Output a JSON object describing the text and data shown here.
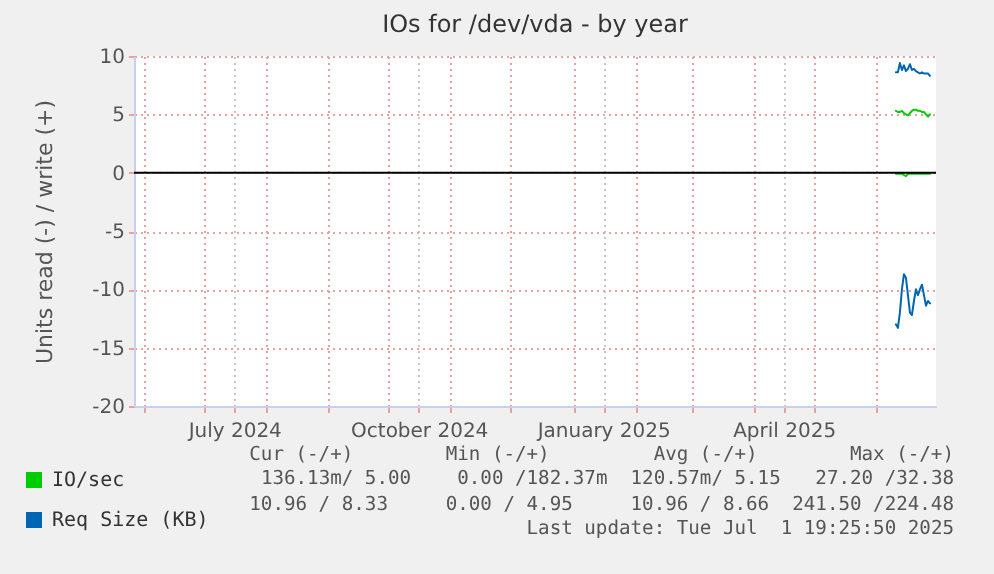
{
  "chart_data": {
    "type": "line",
    "title": "IOs for /dev/vda - by year",
    "ylabel": "Units read (-) / write (+)",
    "x": [
      "2025-06-11",
      "2025-06-12",
      "2025-06-13",
      "2025-06-14",
      "2025-06-15",
      "2025-06-16",
      "2025-06-17",
      "2025-06-18",
      "2025-06-19",
      "2025-06-20",
      "2025-06-21",
      "2025-06-22",
      "2025-06-23",
      "2025-06-24",
      "2025-06-25",
      "2025-06-26",
      "2025-06-27",
      "2025-06-28"
    ],
    "series": [
      {
        "name": "IO/sec",
        "color": "#00cc00",
        "values": [
          5.3,
          5.2,
          5.2,
          5.3,
          5.1,
          5.0,
          4.9,
          5.1,
          5.3,
          5.4,
          5.4,
          5.3,
          5.3,
          5.2,
          5.2,
          5.0,
          4.8,
          5.0
        ]
      },
      {
        "color": "#00cc00",
        "values": [
          -0.1,
          -0.1,
          -0.1,
          -0.1,
          -0.2,
          -0.3,
          -0.1,
          -0.1,
          -0.1,
          -0.1,
          -0.1,
          -0.1,
          -0.1,
          -0.1,
          -0.1,
          -0.1,
          -0.1,
          -0.1
        ]
      },
      {
        "name": "Req Size (KB)",
        "color": "#0066b3",
        "values": [
          8.6,
          8.6,
          9.4,
          8.8,
          9.2,
          8.7,
          8.9,
          9.3,
          8.8,
          8.9,
          8.7,
          8.6,
          8.5,
          8.6,
          8.5,
          8.5,
          8.5,
          8.3
        ]
      },
      {
        "color": "#0066b3",
        "values": [
          -13.0,
          -13.3,
          -12.0,
          -10.0,
          -8.7,
          -9.0,
          -10.5,
          -12.0,
          -12.2,
          -11.0,
          -10.0,
          -10.5,
          -10.0,
          -9.6,
          -10.5,
          -11.4,
          -11.0,
          -11.2
        ]
      }
    ],
    "xlim": [
      "2024-05-27",
      "2025-07-01"
    ],
    "xticks": [
      {
        "value": "2024-06-01",
        "label": null
      },
      {
        "value": "2024-07-01",
        "label": null
      },
      {
        "value": "2024-07-16",
        "label": "July 2024"
      },
      {
        "value": "2024-08-01",
        "label": null
      },
      {
        "value": "2024-09-01",
        "label": null
      },
      {
        "value": "2024-10-01",
        "label": null
      },
      {
        "value": "2024-10-16",
        "label": "October 2024"
      },
      {
        "value": "2024-11-01",
        "label": null
      },
      {
        "value": "2024-12-01",
        "label": null
      },
      {
        "value": "2025-01-01",
        "label": null
      },
      {
        "value": "2025-01-16",
        "label": "January 2025"
      },
      {
        "value": "2025-02-01",
        "label": null
      },
      {
        "value": "2025-03-01",
        "label": null
      },
      {
        "value": "2025-04-01",
        "label": null
      },
      {
        "value": "2025-04-16",
        "label": "April 2025"
      },
      {
        "value": "2025-05-01",
        "label": null
      },
      {
        "value": "2025-06-01",
        "label": null
      }
    ],
    "ylim": [
      -20,
      10
    ],
    "yticks": [
      -20,
      -15,
      -10,
      -5,
      0,
      5,
      10
    ],
    "ref_lines": [
      {
        "axis": "y",
        "value": 0,
        "color": "#000000"
      }
    ],
    "grid": true,
    "legend": "bottom left",
    "annotations": [
      "Cur (-/+)        Min (-/+)         Avg (-/+)        Max (-/+)",
      "136.13m/ 5.00    0.00 /182.37m  120.57m/ 5.15   27.20 /32.38",
      "10.96 / 8.33     0.00 / 4.95     10.96 / 8.66  241.50 /224.48",
      "Last update: Tue Jul  1 19:25:50 2025"
    ]
  }
}
